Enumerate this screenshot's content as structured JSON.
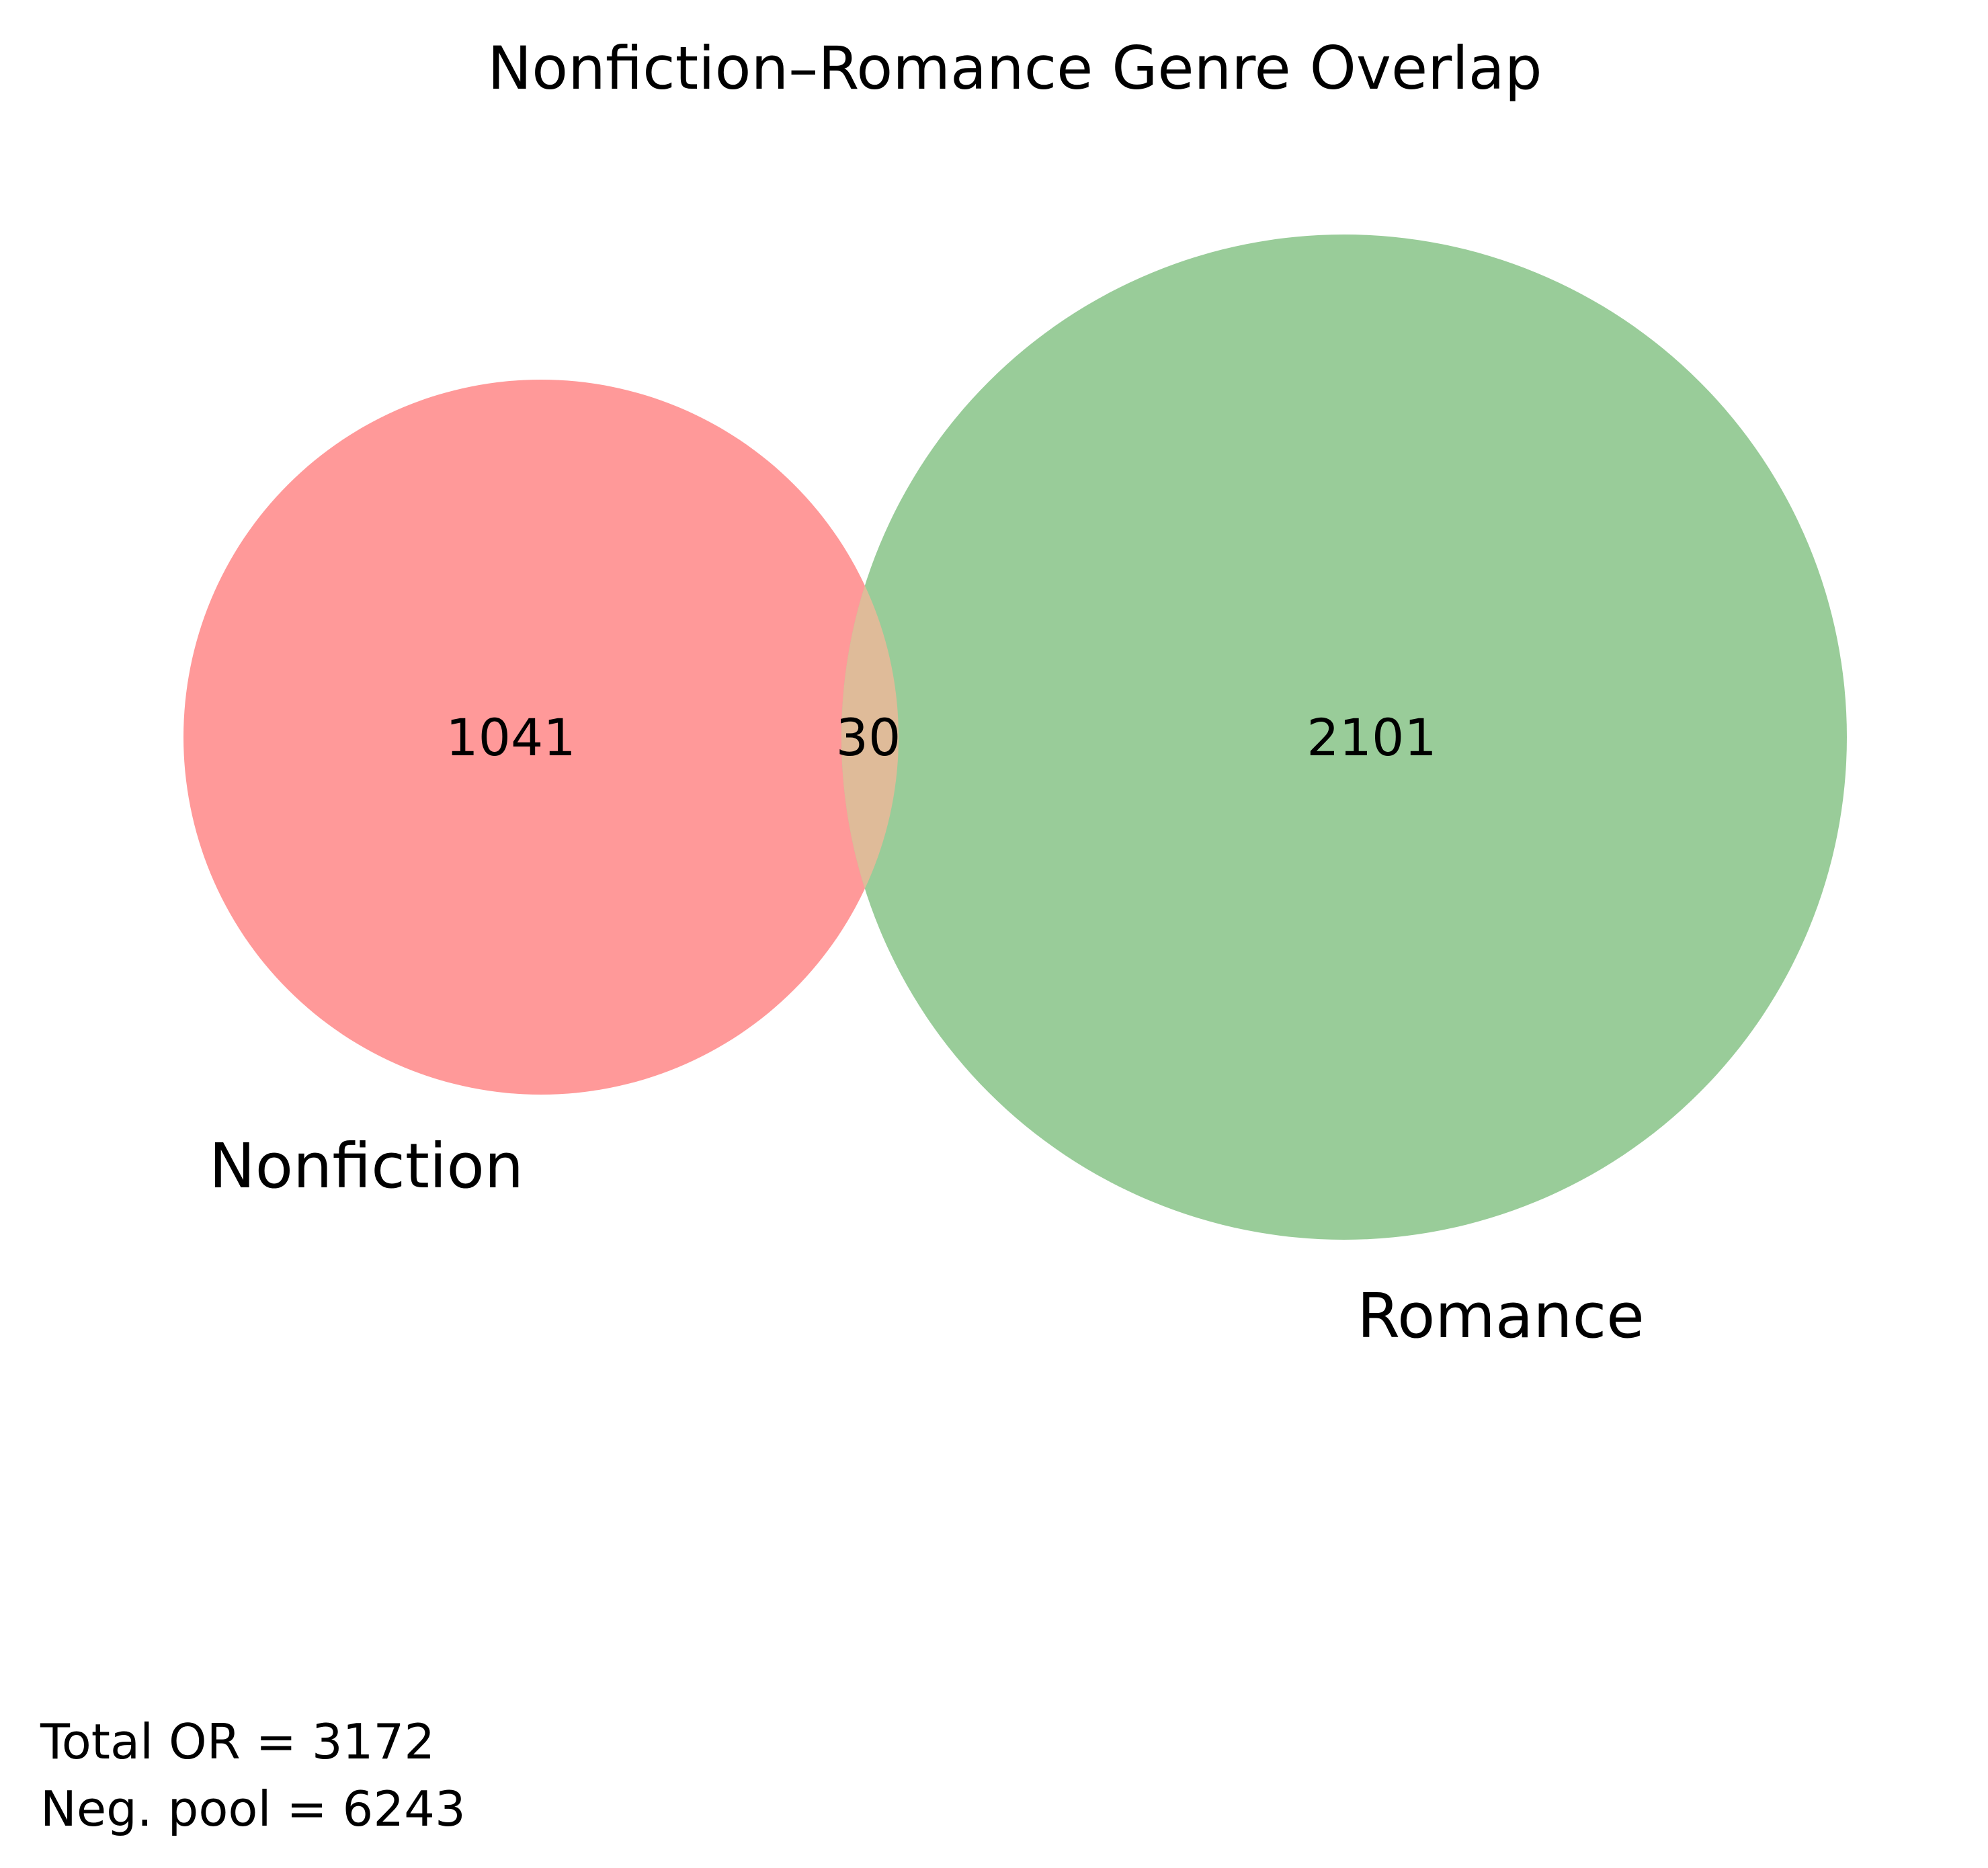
{
  "title": "Nonfiction–Romance Genre Overlap",
  "chart_data": {
    "type": "venn",
    "sets": [
      {
        "name": "Nonfiction",
        "only_count": "1041",
        "color": "#ff9999"
      },
      {
        "name": "Romance",
        "only_count": "2101",
        "color": "#99cc99"
      }
    ],
    "intersection": {
      "count": "30",
      "color": "#dfbb99"
    }
  },
  "notes": {
    "total": "Total OR = 3172",
    "neg_pool": "Neg. pool = 6243"
  }
}
